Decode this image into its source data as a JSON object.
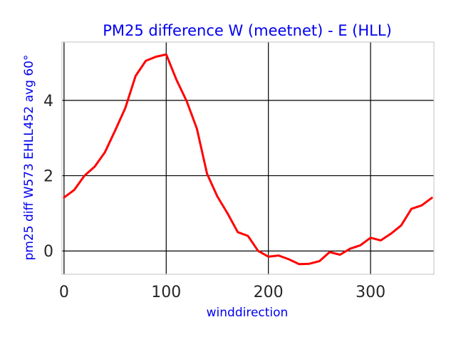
{
  "chart_data": {
    "type": "line",
    "title": "PM25 difference W (meetnet) - E (HLL)",
    "xlabel": "winddirection",
    "ylabel": "pm25 diff W573 EHLL452 avg 60°",
    "xlim": [
      -2,
      362
    ],
    "ylim": [
      -0.62,
      5.55
    ],
    "xticks": [
      0,
      100,
      200,
      300
    ],
    "yticks": [
      0,
      2,
      4
    ],
    "grid": true,
    "series": [
      {
        "color": "#ff0000",
        "x": [
          0,
          10,
          20,
          30,
          40,
          50,
          60,
          70,
          80,
          90,
          100,
          110,
          120,
          130,
          140,
          150,
          160,
          170,
          180,
          190,
          200,
          210,
          220,
          230,
          240,
          250,
          260,
          270,
          280,
          290,
          300,
          310,
          320,
          330,
          340,
          350,
          360
        ],
        "y": [
          1.42,
          1.62,
          2.0,
          2.24,
          2.62,
          3.2,
          3.8,
          4.65,
          5.05,
          5.16,
          5.22,
          4.55,
          3.98,
          3.25,
          2.05,
          1.45,
          1.0,
          0.5,
          0.4,
          0.0,
          -0.15,
          -0.12,
          -0.22,
          -0.35,
          -0.34,
          -0.27,
          -0.03,
          -0.1,
          0.06,
          0.15,
          0.35,
          0.28,
          0.46,
          0.68,
          1.12,
          1.21,
          1.41
        ]
      }
    ]
  }
}
